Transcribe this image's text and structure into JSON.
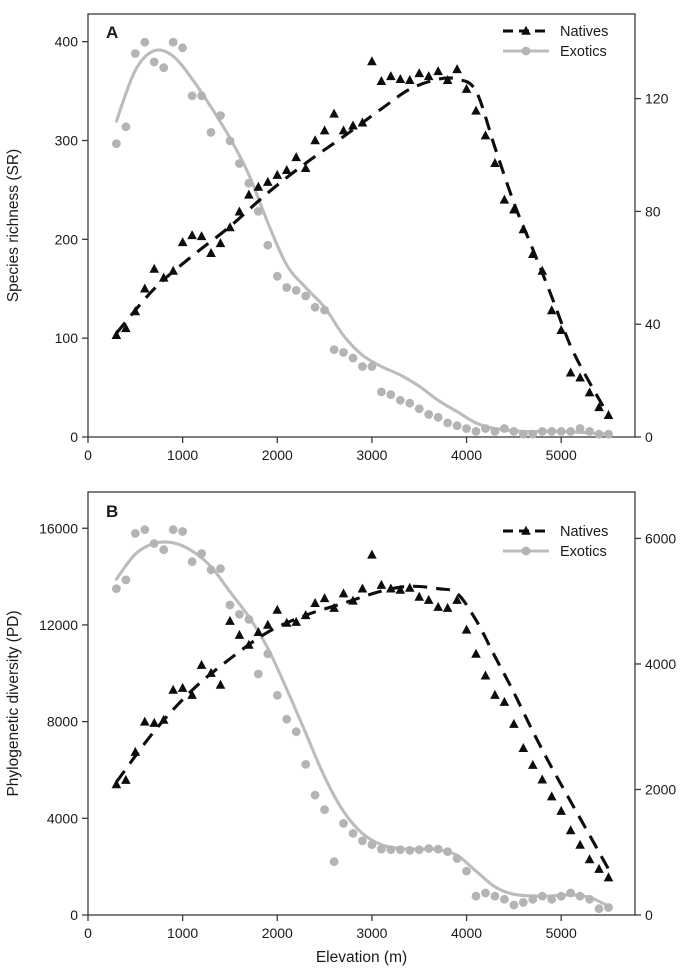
{
  "figure": {
    "background": "#ffffff",
    "colors": {
      "natives": "#0d0d0d",
      "exotics": "#b4b4b4",
      "exotics_line": "#bcbcbc",
      "axis": "#3a3a3a",
      "text": "#1a1a1a"
    },
    "xlabel": "Elevation (m)"
  },
  "chart_data": [
    {
      "type": "scatter",
      "panel_label": "A",
      "ylabel_left": "Species richness (SR)",
      "yticks_left": [
        0,
        100,
        200,
        300,
        400
      ],
      "yticks_right": [
        0,
        40,
        80,
        120
      ],
      "ylim_left": [
        0,
        428
      ],
      "ylim_right": [
        0,
        150
      ],
      "xticks": [
        0,
        1000,
        2000,
        3000,
        4000,
        5000
      ],
      "xlim": [
        0,
        5780
      ],
      "grid": false,
      "legend_position": "top-right",
      "legend_entries": [
        "Natives",
        "Exotics"
      ],
      "x_elevations": [
        300,
        400,
        500,
        600,
        700,
        800,
        900,
        1000,
        1100,
        1200,
        1300,
        1400,
        1500,
        1600,
        1700,
        1800,
        1900,
        2000,
        2100,
        2200,
        2300,
        2400,
        2500,
        2600,
        2700,
        2800,
        2900,
        3000,
        3100,
        3200,
        3300,
        3400,
        3500,
        3600,
        3700,
        3800,
        3900,
        4000,
        4100,
        4200,
        4300,
        4400,
        4500,
        4600,
        4700,
        4800,
        4900,
        5000,
        5100,
        5200,
        5300,
        5400,
        5500
      ],
      "series": [
        {
          "name": "Natives",
          "axis": "left",
          "marker": "triangle",
          "line_style": "dashed",
          "values": [
            103,
            110,
            127,
            150,
            170,
            161,
            168,
            197,
            204,
            203,
            186,
            196,
            212,
            228,
            245,
            253,
            258,
            265,
            270,
            283,
            272,
            300,
            310,
            327,
            310,
            315,
            318,
            380,
            360,
            365,
            362,
            361,
            368,
            365,
            370,
            361,
            372,
            352,
            330,
            305,
            277,
            240,
            230,
            210,
            185,
            168,
            128,
            108,
            65,
            60,
            45,
            30,
            22
          ],
          "trend": [
            [
              300,
              105
            ],
            [
              700,
              150
            ],
            [
              1100,
              183
            ],
            [
              1500,
              213
            ],
            [
              1900,
              247
            ],
            [
              2300,
              277
            ],
            [
              2700,
              304
            ],
            [
              3100,
              332
            ],
            [
              3400,
              352
            ],
            [
              3700,
              362
            ],
            [
              3900,
              362
            ],
            [
              4100,
              350
            ],
            [
              4300,
              293
            ],
            [
              4500,
              237
            ],
            [
              4700,
              190
            ],
            [
              4900,
              142
            ],
            [
              5100,
              92
            ],
            [
              5300,
              55
            ],
            [
              5500,
              22
            ]
          ]
        },
        {
          "name": "Exotics",
          "axis": "right",
          "marker": "circle",
          "line_style": "solid",
          "values": [
            104,
            110,
            136,
            140,
            133,
            131,
            140,
            138,
            121,
            121,
            108,
            114,
            105,
            97,
            90,
            80,
            68,
            57,
            53,
            52,
            50,
            46,
            45,
            31,
            30,
            28,
            25,
            25,
            16,
            15,
            13,
            12,
            10,
            8,
            7,
            5,
            4,
            3,
            2,
            3,
            2,
            3,
            2,
            1,
            1,
            2,
            2,
            2,
            2,
            3,
            2,
            1,
            1
          ],
          "trend": [
            [
              300,
              112
            ],
            [
              500,
              130
            ],
            [
              700,
              137
            ],
            [
              900,
              135
            ],
            [
              1100,
              127
            ],
            [
              1300,
              117
            ],
            [
              1500,
              106
            ],
            [
              1700,
              93
            ],
            [
              1900,
              76
            ],
            [
              2100,
              61
            ],
            [
              2300,
              53
            ],
            [
              2500,
              46
            ],
            [
              2700,
              36
            ],
            [
              2900,
              29
            ],
            [
              3100,
              25
            ],
            [
              3300,
              22
            ],
            [
              3500,
              18
            ],
            [
              3700,
              13
            ],
            [
              3900,
              9
            ],
            [
              4100,
              5
            ],
            [
              4300,
              3
            ],
            [
              4600,
              2
            ],
            [
              5000,
              2
            ],
            [
              5500,
              1
            ]
          ]
        }
      ]
    },
    {
      "type": "scatter",
      "panel_label": "B",
      "ylabel_left": "Phylogenetic diversity (PD)",
      "xlabel": "Elevation (m)",
      "yticks_left": [
        0,
        4000,
        8000,
        12000,
        16000
      ],
      "yticks_right": [
        0,
        2000,
        4000,
        6000
      ],
      "ylim_left": [
        0,
        17500
      ],
      "ylim_right": [
        0,
        6740
      ],
      "xticks": [
        0,
        1000,
        2000,
        3000,
        4000,
        5000
      ],
      "xlim": [
        0,
        5780
      ],
      "grid": false,
      "legend_position": "top-right",
      "legend_entries": [
        "Natives",
        "Exotics"
      ],
      "x_elevations": [
        300,
        400,
        500,
        600,
        700,
        800,
        900,
        1000,
        1100,
        1200,
        1300,
        1400,
        1500,
        1600,
        1700,
        1800,
        1900,
        2000,
        2100,
        2200,
        2300,
        2400,
        2500,
        2600,
        2700,
        2800,
        2900,
        3000,
        3100,
        3200,
        3300,
        3400,
        3500,
        3600,
        3700,
        3800,
        3900,
        4000,
        4100,
        4200,
        4300,
        4400,
        4500,
        4600,
        4700,
        4800,
        4900,
        5000,
        5100,
        5200,
        5300,
        5400,
        5500
      ],
      "series": [
        {
          "name": "Natives",
          "axis": "left",
          "marker": "triangle",
          "line_style": "dashed",
          "values": [
            5400,
            5580,
            6740,
            7990,
            7940,
            8070,
            9310,
            9390,
            9100,
            10340,
            10010,
            9520,
            12160,
            11580,
            11170,
            11700,
            12000,
            12620,
            12080,
            12120,
            12400,
            12900,
            13100,
            12700,
            13300,
            13000,
            13500,
            14900,
            13650,
            13500,
            13450,
            13530,
            13160,
            13030,
            12740,
            12700,
            13030,
            11800,
            10800,
            9900,
            9100,
            8810,
            7900,
            6900,
            6200,
            5600,
            4900,
            4300,
            3500,
            2900,
            2300,
            1900,
            1550
          ],
          "trend": [
            [
              300,
              5500
            ],
            [
              700,
              7600
            ],
            [
              1100,
              9300
            ],
            [
              1500,
              10600
            ],
            [
              1900,
              11700
            ],
            [
              2300,
              12400
            ],
            [
              2700,
              12900
            ],
            [
              3100,
              13400
            ],
            [
              3400,
              13600
            ],
            [
              3700,
              13500
            ],
            [
              3900,
              13300
            ],
            [
              4100,
              12200
            ],
            [
              4300,
              10700
            ],
            [
              4500,
              9200
            ],
            [
              4700,
              7600
            ],
            [
              4900,
              6100
            ],
            [
              5100,
              4700
            ],
            [
              5300,
              3300
            ],
            [
              5500,
              1900
            ]
          ]
        },
        {
          "name": "Exotics",
          "axis": "right",
          "marker": "circle",
          "line_style": "solid",
          "values": [
            5200,
            5340,
            6080,
            6140,
            5920,
            5820,
            6140,
            6110,
            5630,
            5760,
            5500,
            5520,
            4940,
            4790,
            4710,
            3840,
            4160,
            3500,
            3120,
            2920,
            2400,
            1910,
            1680,
            850,
            1460,
            1300,
            1180,
            1120,
            1050,
            1040,
            1040,
            1030,
            1040,
            1060,
            1050,
            1010,
            900,
            700,
            300,
            350,
            300,
            250,
            160,
            200,
            250,
            300,
            250,
            300,
            350,
            300,
            250,
            100,
            120
          ],
          "trend": [
            [
              300,
              5350
            ],
            [
              500,
              5750
            ],
            [
              700,
              5920
            ],
            [
              900,
              5930
            ],
            [
              1100,
              5800
            ],
            [
              1300,
              5550
            ],
            [
              1500,
              5150
            ],
            [
              1700,
              4750
            ],
            [
              1900,
              4250
            ],
            [
              2100,
              3600
            ],
            [
              2300,
              2900
            ],
            [
              2500,
              2200
            ],
            [
              2700,
              1650
            ],
            [
              2900,
              1300
            ],
            [
              3100,
              1120
            ],
            [
              3300,
              1060
            ],
            [
              3500,
              1050
            ],
            [
              3700,
              1040
            ],
            [
              3900,
              950
            ],
            [
              4100,
              700
            ],
            [
              4300,
              450
            ],
            [
              4500,
              330
            ],
            [
              4800,
              300
            ],
            [
              5100,
              320
            ],
            [
              5300,
              280
            ],
            [
              5500,
              140
            ]
          ]
        }
      ]
    }
  ]
}
